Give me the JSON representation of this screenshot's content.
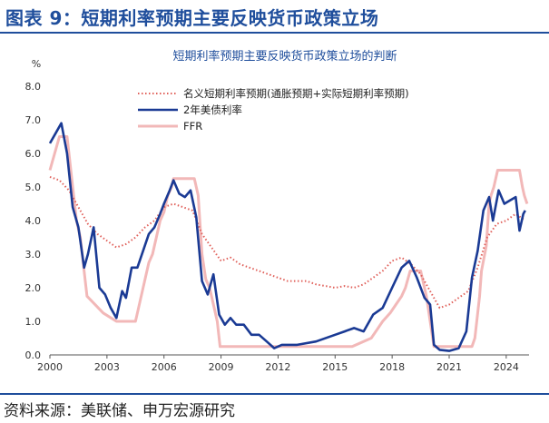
{
  "figure": {
    "title": "图表 9：短期利率预期主要反映货币政策立场",
    "source": "资料来源：美联储、申万宏源研究",
    "title_color": "#1f4e9c"
  },
  "chart_data": {
    "type": "line",
    "title": "短期利率预期主要反映货币政策立场的判断",
    "ylabel": "%",
    "ylim": [
      0,
      8
    ],
    "xlim": [
      2000,
      2025.2
    ],
    "y_ticks": [
      "0.0",
      "1.0",
      "2.0",
      "3.0",
      "4.0",
      "5.0",
      "6.0",
      "7.0",
      "8.0"
    ],
    "x_ticks": [
      "2000",
      "2003",
      "2006",
      "2009",
      "2012",
      "2015",
      "2018",
      "2021",
      "2024"
    ],
    "grid": false,
    "legend_position": "top-center",
    "series": [
      {
        "name": "名义短期利率预期(通胀预期+实际短期利率预期)",
        "style": "dotted",
        "color": "#e0605a",
        "x": [
          2000.0,
          2000.5,
          2001.0,
          2001.5,
          2002.0,
          2002.5,
          2003.0,
          2003.5,
          2004.0,
          2004.5,
          2005.0,
          2005.5,
          2006.0,
          2006.5,
          2007.0,
          2007.5,
          2008.0,
          2008.5,
          2009.0,
          2009.5,
          2010.0,
          2010.5,
          2011.0,
          2011.5,
          2012.0,
          2012.5,
          2013.0,
          2013.5,
          2014.0,
          2014.5,
          2015.0,
          2015.5,
          2016.0,
          2016.5,
          2017.0,
          2017.5,
          2018.0,
          2018.5,
          2019.0,
          2019.5,
          2020.0,
          2020.5,
          2021.0,
          2021.5,
          2022.0,
          2022.5,
          2023.0,
          2023.5,
          2024.0,
          2024.5,
          2025.0
        ],
        "y": [
          5.3,
          5.2,
          4.9,
          4.4,
          3.9,
          3.6,
          3.4,
          3.2,
          3.3,
          3.5,
          3.8,
          4.0,
          4.4,
          4.5,
          4.4,
          4.3,
          3.6,
          3.2,
          2.8,
          2.9,
          2.7,
          2.6,
          2.5,
          2.4,
          2.3,
          2.2,
          2.2,
          2.2,
          2.1,
          2.05,
          2.0,
          2.05,
          2.0,
          2.1,
          2.3,
          2.5,
          2.8,
          2.9,
          2.7,
          2.4,
          1.9,
          1.4,
          1.5,
          1.7,
          1.9,
          2.6,
          3.5,
          3.9,
          4.0,
          4.2,
          4.0
        ]
      },
      {
        "name": "2年美债利率",
        "style": "solid",
        "color": "#1a3a94",
        "x": [
          2000.0,
          2000.3,
          2000.6,
          2000.9,
          2001.2,
          2001.5,
          2001.8,
          2002.0,
          2002.3,
          2002.6,
          2002.9,
          2003.2,
          2003.5,
          2003.8,
          2004.0,
          2004.3,
          2004.6,
          2004.9,
          2005.2,
          2005.5,
          2005.8,
          2006.0,
          2006.3,
          2006.5,
          2006.8,
          2007.1,
          2007.4,
          2007.7,
          2008.0,
          2008.3,
          2008.6,
          2008.9,
          2009.2,
          2009.5,
          2009.8,
          2010.2,
          2010.6,
          2011.0,
          2011.4,
          2011.8,
          2012.2,
          2013.0,
          2014.0,
          2015.0,
          2015.5,
          2016.0,
          2016.5,
          2017.0,
          2017.5,
          2018.0,
          2018.5,
          2018.9,
          2019.3,
          2019.7,
          2020.0,
          2020.2,
          2020.5,
          2021.0,
          2021.5,
          2021.9,
          2022.2,
          2022.5,
          2022.8,
          2023.1,
          2023.3,
          2023.6,
          2023.9,
          2024.2,
          2024.5,
          2024.7,
          2024.9,
          2025.0
        ],
        "y": [
          6.3,
          6.6,
          6.9,
          6.0,
          4.4,
          3.8,
          2.6,
          3.0,
          3.8,
          2.0,
          1.8,
          1.4,
          1.1,
          1.9,
          1.7,
          2.6,
          2.6,
          3.1,
          3.6,
          3.8,
          4.2,
          4.5,
          4.9,
          5.2,
          4.8,
          4.7,
          4.9,
          4.1,
          2.2,
          1.8,
          2.4,
          1.2,
          0.9,
          1.1,
          0.9,
          0.9,
          0.6,
          0.6,
          0.4,
          0.2,
          0.3,
          0.3,
          0.4,
          0.6,
          0.7,
          0.8,
          0.7,
          1.2,
          1.4,
          2.0,
          2.6,
          2.8,
          2.3,
          1.7,
          1.5,
          0.3,
          0.15,
          0.12,
          0.2,
          0.7,
          2.3,
          3.1,
          4.3,
          4.7,
          4.0,
          4.9,
          4.5,
          4.6,
          4.7,
          3.7,
          4.2,
          4.3
        ]
      },
      {
        "name": "FFR",
        "style": "solid",
        "color": "#f2b8b8",
        "x": [
          2000.0,
          2000.5,
          2000.9,
          2001.0,
          2001.2,
          2001.4,
          2001.6,
          2001.8,
          2001.95,
          2002.8,
          2003.5,
          2004.5,
          2004.6,
          2004.8,
          2005.0,
          2005.2,
          2005.4,
          2005.6,
          2005.8,
          2006.0,
          2006.2,
          2006.4,
          2006.5,
          2007.6,
          2007.8,
          2008.0,
          2008.2,
          2008.4,
          2008.8,
          2008.95,
          2015.9,
          2016.9,
          2017.2,
          2017.5,
          2017.9,
          2018.2,
          2018.5,
          2018.7,
          2018.95,
          2019.5,
          2019.6,
          2019.8,
          2020.2,
          2022.2,
          2022.35,
          2022.45,
          2022.6,
          2022.7,
          2022.95,
          2023.1,
          2023.2,
          2023.35,
          2023.55,
          2024.7,
          2024.85,
          2024.95,
          2025.1
        ],
        "y": [
          5.5,
          6.5,
          6.5,
          6.0,
          5.0,
          4.0,
          3.5,
          2.5,
          1.75,
          1.25,
          1.0,
          1.0,
          1.25,
          1.75,
          2.25,
          2.75,
          3.0,
          3.5,
          4.0,
          4.25,
          4.75,
          5.0,
          5.25,
          5.25,
          4.75,
          3.0,
          2.25,
          2.0,
          1.0,
          0.25,
          0.25,
          0.5,
          0.75,
          1.0,
          1.25,
          1.5,
          1.75,
          2.0,
          2.5,
          2.5,
          2.25,
          1.75,
          0.25,
          0.25,
          0.5,
          1.0,
          1.75,
          2.5,
          3.25,
          4.5,
          4.75,
          5.0,
          5.5,
          5.5,
          5.0,
          4.75,
          4.5
        ]
      }
    ]
  }
}
